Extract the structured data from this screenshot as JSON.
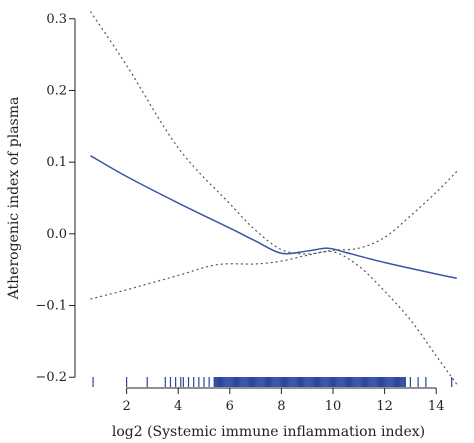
{
  "chart_data": {
    "type": "line",
    "title": "",
    "xlabel": "log2 (Systemic immune inflammation index)",
    "ylabel": "Atherogenic index of plasma",
    "xlim": [
      0.0,
      15.0
    ],
    "ylim": [
      -0.215,
      0.315
    ],
    "x_ticks": [
      2,
      4,
      6,
      8,
      10,
      12,
      14
    ],
    "y_ticks": [
      -0.2,
      -0.1,
      0.0,
      0.1,
      0.2,
      0.3
    ],
    "x_tick_labels": [
      "2",
      "4",
      "6",
      "8",
      "10",
      "12",
      "14"
    ],
    "y_tick_labels": [
      "−0.2",
      "−0.1",
      "0.0",
      "0.1",
      "0.2",
      "0.3"
    ],
    "grid": false,
    "legend": "none",
    "colors": {
      "fit": "#3a55a8",
      "ci": "#555555",
      "rug": "#2c45a0",
      "axis": "#222222"
    },
    "series": [
      {
        "style": "solid",
        "x": [
          0.6,
          2,
          4,
          6,
          7,
          8,
          9,
          9.8,
          10.5,
          12,
          14,
          14.8
        ],
        "y": [
          0.109,
          0.08,
          0.043,
          0.008,
          -0.01,
          -0.027,
          -0.024,
          -0.02,
          -0.026,
          -0.04,
          -0.056,
          -0.062
        ]
      },
      {
        "style": "dotted",
        "x": [
          0.6,
          2,
          4,
          6,
          7,
          8,
          9,
          10,
          11,
          12,
          13,
          14,
          14.8
        ],
        "y": [
          0.31,
          0.235,
          0.12,
          0.042,
          0.005,
          -0.022,
          -0.028,
          -0.023,
          -0.02,
          -0.005,
          0.025,
          0.058,
          0.087
        ]
      },
      {
        "style": "dotted",
        "x": [
          0.6,
          2,
          4,
          5.5,
          7,
          8,
          9,
          10,
          11,
          12,
          13,
          14,
          14.8
        ],
        "y": [
          -0.091,
          -0.078,
          -0.058,
          -0.043,
          -0.042,
          -0.038,
          -0.03,
          -0.025,
          -0.045,
          -0.08,
          -0.12,
          -0.17,
          -0.21
        ]
      }
    ],
    "rug": {
      "x_sparse": [
        0.7,
        2.0,
        2.8,
        3.5,
        3.7,
        3.9,
        4.1,
        4.2,
        4.4,
        4.6,
        4.8,
        5.0,
        5.2,
        5.4,
        12.8,
        13.0,
        13.3,
        13.6,
        14.6
      ],
      "dense_range": [
        5.4,
        12.8
      ]
    }
  }
}
